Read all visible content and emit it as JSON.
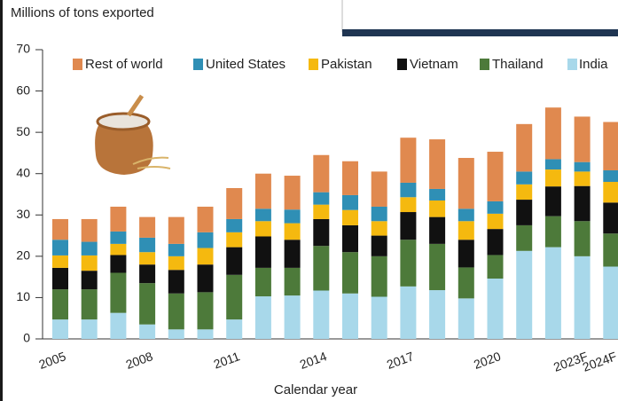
{
  "chart_data": {
    "type": "stacked_bar",
    "y_axis_label": "Millions of tons exported",
    "x_axis_label": "Calendar year",
    "categories": [
      "2005",
      null,
      null,
      "2008",
      null,
      null,
      "2011",
      null,
      null,
      "2014",
      null,
      null,
      "2017",
      null,
      null,
      "2020",
      null,
      null,
      "2023F",
      "2024F"
    ],
    "series": [
      {
        "name": "Rest of world",
        "color": "#e0894f",
        "values": [
          5.0,
          5.5,
          6.0,
          5.0,
          6.5,
          6.2,
          7.5,
          8.5,
          8.2,
          9.0,
          8.2,
          8.5,
          10.9,
          12.0,
          12.3,
          12.0,
          11.5,
          12.5,
          11.0,
          11.7
        ]
      },
      {
        "name": "United States",
        "color": "#2f8fb5",
        "values": [
          3.8,
          3.3,
          3.0,
          3.5,
          3.0,
          3.8,
          3.2,
          3.0,
          3.3,
          3.0,
          3.6,
          3.5,
          3.5,
          2.8,
          3.0,
          3.0,
          3.1,
          2.5,
          2.3,
          2.8
        ]
      },
      {
        "name": "Pakistan",
        "color": "#f5b90f",
        "values": [
          3.0,
          3.7,
          2.7,
          3.0,
          3.3,
          4.0,
          3.6,
          3.7,
          4.0,
          3.5,
          3.7,
          3.5,
          3.6,
          4.0,
          4.5,
          3.7,
          3.7,
          4.1,
          3.5,
          5.0
        ]
      },
      {
        "name": "Vietnam",
        "color": "#111111",
        "values": [
          5.2,
          4.5,
          4.3,
          4.5,
          5.7,
          6.7,
          6.7,
          7.6,
          6.8,
          6.5,
          6.5,
          5.0,
          6.7,
          6.5,
          6.7,
          6.3,
          6.2,
          7.2,
          8.5,
          7.5
        ]
      },
      {
        "name": "Thailand",
        "color": "#4d7a3a",
        "values": [
          7.3,
          7.3,
          9.7,
          10.0,
          8.7,
          9.0,
          10.8,
          6.9,
          6.7,
          10.8,
          10.0,
          9.8,
          11.3,
          11.2,
          7.5,
          5.7,
          6.2,
          7.5,
          8.5,
          8.0
        ]
      },
      {
        "name": "India",
        "color": "#a8d8ea",
        "values": [
          4.7,
          4.7,
          6.3,
          3.5,
          2.3,
          2.3,
          4.7,
          10.3,
          10.5,
          11.7,
          11.0,
          10.2,
          12.7,
          11.8,
          9.8,
          14.6,
          21.3,
          22.2,
          20.0,
          17.5
        ]
      }
    ],
    "ylim": [
      0,
      70
    ],
    "yticks": [
      0,
      10,
      20,
      30,
      40,
      50,
      60,
      70
    ]
  }
}
